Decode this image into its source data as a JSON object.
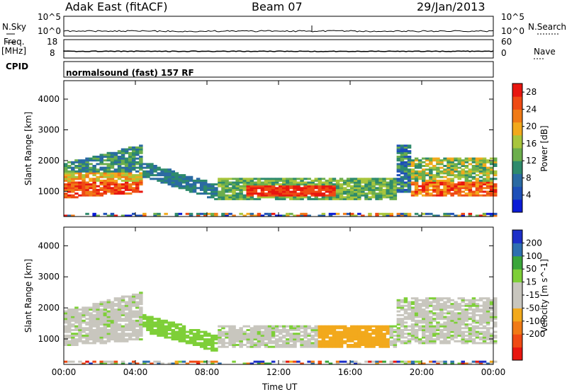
{
  "header": {
    "station": "Adak East (fitACF)",
    "beam": "Beam 07",
    "date": "29/Jan/2013"
  },
  "aux": {
    "nsky_label": "N.Sky",
    "nsearch_label": "N.Search",
    "freq_label_top": "Freq.",
    "freq_label_unit": "[MHz]",
    "nave_label": "Nave",
    "cpid_label": "CPID",
    "cpid_value": "normalsound (fast) 157 RF",
    "noise_left_ticks": [
      "10^5",
      "10^0"
    ],
    "noise_right_ticks": [
      "10^5",
      "10^0"
    ],
    "freq_left_ticks": [
      "18",
      "8"
    ],
    "nave_right_ticks": [
      "60",
      "0"
    ]
  },
  "chart_data": [
    {
      "type": "heatmap",
      "title": "",
      "xlabel": "Time UT",
      "ylabel": "Slant Range [km]",
      "x_ticks": [
        "00:00",
        "04:00",
        "08:00",
        "12:00",
        "16:00",
        "20:00",
        "00:00"
      ],
      "xlim_hours": [
        0,
        24
      ],
      "ylim": [
        180,
        4600
      ],
      "y_ticks": [
        1000,
        2000,
        3000,
        4000
      ],
      "colorbar": {
        "label": "Power [dB]",
        "ticks": [
          4,
          8,
          12,
          16,
          20,
          24,
          28
        ],
        "range": [
          0,
          30
        ],
        "colors": [
          "#0b1bd6",
          "#1d4fb8",
          "#2a6aa2",
          "#2e8a6c",
          "#6cae4c",
          "#a8c53c",
          "#f2a91c",
          "#f07a16",
          "#ef4a14",
          "#e8160f"
        ]
      }
    },
    {
      "type": "heatmap",
      "title": "",
      "xlabel": "Time UT",
      "ylabel": "Slant Range [km]",
      "x_ticks": [
        "00:00",
        "04:00",
        "08:00",
        "12:00",
        "16:00",
        "20:00",
        "00:00"
      ],
      "xlim_hours": [
        0,
        24
      ],
      "ylim": [
        180,
        4600
      ],
      "y_ticks": [
        1000,
        2000,
        3000,
        4000
      ],
      "colorbar": {
        "label": "Velocity [m s^-1]",
        "ticks": [
          "200",
          "100",
          "50",
          "15",
          "-15",
          "-50",
          "-100",
          "-200"
        ],
        "range": [
          -250,
          250
        ],
        "colors": [
          "#e8160f",
          "#ef4a14",
          "#f07a16",
          "#f2a91c",
          "#c8c6be",
          "#c8c6be",
          "#7ecf38",
          "#3aa53a",
          "#2e6fb0",
          "#1d2fc8"
        ]
      }
    }
  ],
  "colors": {
    "line": "#000000",
    "ground_scatter": "#b8b4aa"
  }
}
